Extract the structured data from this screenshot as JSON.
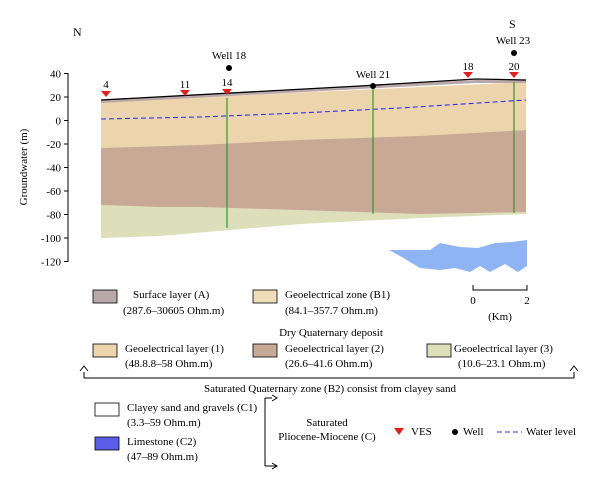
{
  "orientation": {
    "north": "N",
    "south": "S"
  },
  "y_axis": {
    "label": "Groundwater (m)",
    "ticks": [
      40,
      20,
      0,
      -20,
      -40,
      -60,
      -80,
      -100,
      -120
    ]
  },
  "ves_points": [
    "4",
    "11",
    "14",
    "18",
    "20"
  ],
  "wells": [
    "Well 18",
    "Well 21",
    "Well 23"
  ],
  "scale_bar": {
    "min": "0",
    "max": "2",
    "unit": "(Km)"
  },
  "legend": {
    "surface_layer": {
      "name": "Surface layer (A)",
      "range": "(287.6–30605 Ohm.m)",
      "color": "#b9a8aa"
    },
    "zone_b1": {
      "name": "Geoelectrical zone (B1)",
      "range": "(84.1–357.7 Ohm.m)",
      "color": "#efdcb8"
    },
    "dry_deposit": "Dry Quaternary deposit",
    "layer1": {
      "name": "Geoelectrical layer (1)",
      "range": "(48.8.8–58 Ohm.m)",
      "color": "#ecd5ad"
    },
    "layer2": {
      "name": "Geoelectrical layer (2)",
      "range": "(26.6–41.6 Ohm.m)",
      "color": "#c7a996"
    },
    "layer3": {
      "name": "Geoelectrical layer (3)",
      "range": "(10.6–23.1 Ohm.m)",
      "color": "#dcdfba"
    },
    "saturated_b2": "Saturated Quaternary zone (B2) consist from clayey sand",
    "clayey_c1": {
      "name": "Clayey sand and gravels (C1)",
      "range": "(3.3–59 Ohm.m)",
      "color": "#ffffff"
    },
    "limestone_c2": {
      "name": "Limestone (C2)",
      "range": "(47–89 Ohm.m)",
      "color": "#5a5de8"
    },
    "pliocene_line1": "Saturated",
    "pliocene_line2": "Pliocene-Miocene (C)",
    "ves_label": "VES",
    "well_label": "Well",
    "water_level_label": "Water level"
  },
  "colors": {
    "limestone_body": "#8fb4f4",
    "vertical_lines": "#2e9a2e",
    "water_level_line": "#3333dd",
    "ves_marker": "#e0201c",
    "well_marker": "#000000"
  }
}
